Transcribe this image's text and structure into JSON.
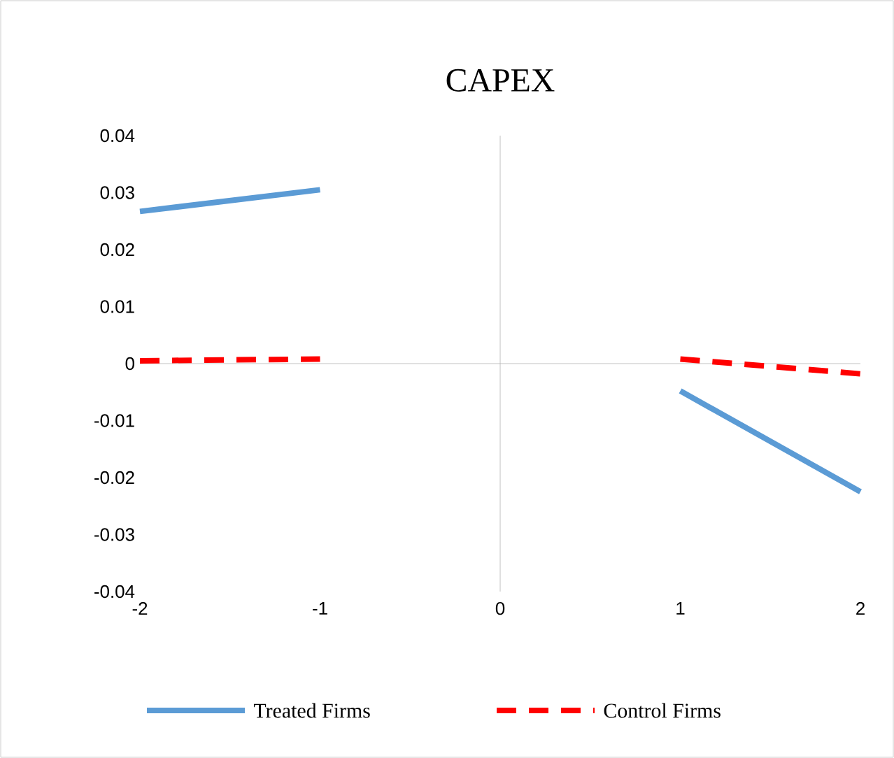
{
  "chart_data": {
    "type": "line",
    "title": "CAPEX",
    "x": [
      -2,
      -1,
      0,
      1,
      2
    ],
    "xlim": [
      -2,
      2
    ],
    "xticks": [
      -2,
      -1,
      0,
      1,
      2
    ],
    "ylim": [
      -0.04,
      0.04
    ],
    "yticks": [
      -0.04,
      -0.03,
      -0.02,
      -0.01,
      0,
      0.01,
      0.02,
      0.03,
      0.04
    ],
    "legend": "bottom",
    "series": [
      {
        "name": "Treated Firms",
        "color": "#5b9bd5",
        "line_style": "solid",
        "values": [
          0.0267,
          0.0305,
          null,
          -0.0048,
          -0.0225
        ]
      },
      {
        "name": "Control Firms",
        "color": "#ff0000",
        "line_style": "dashed",
        "values": [
          0.0005,
          0.0008,
          null,
          0.0008,
          -0.0018
        ]
      }
    ]
  }
}
